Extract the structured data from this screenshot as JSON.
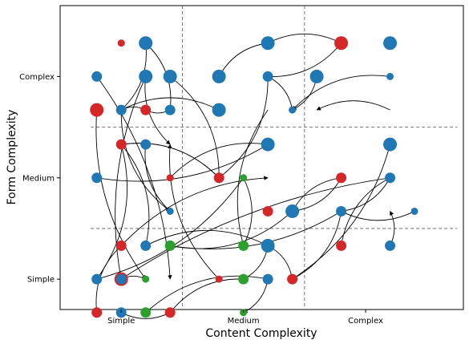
{
  "chart_data": {
    "type": "scatter",
    "title": "",
    "xlabel": "Content Complexity",
    "ylabel": "Form Complexity",
    "xlim": [
      0.5,
      3.8
    ],
    "ylim": [
      0.7,
      3.7
    ],
    "x_ticks": [
      1,
      2,
      3
    ],
    "x_tick_labels": [
      "Simple",
      "Medium",
      "Complex"
    ],
    "y_ticks": [
      1,
      2,
      3
    ],
    "y_tick_labels": [
      "Simple",
      "Medium",
      "Complex"
    ],
    "dividers": {
      "x": [
        1.5,
        2.5
      ],
      "y": [
        1.5,
        2.5
      ]
    },
    "colors": {
      "blue": "#1f77b4",
      "red": "#d62728",
      "green": "#2ca02c"
    },
    "points": [
      {
        "x": 0.8,
        "y": 2.67,
        "color": "red",
        "size": "large"
      },
      {
        "x": 1.0,
        "y": 3.33,
        "color": "red",
        "size": "small"
      },
      {
        "x": 1.2,
        "y": 3.33,
        "color": "blue",
        "size": "large"
      },
      {
        "x": 0.8,
        "y": 3.0,
        "color": "blue",
        "size": "medium"
      },
      {
        "x": 1.2,
        "y": 3.0,
        "color": "blue",
        "size": "large"
      },
      {
        "x": 1.4,
        "y": 3.0,
        "color": "blue",
        "size": "large"
      },
      {
        "x": 1.0,
        "y": 2.67,
        "color": "blue",
        "size": "medium"
      },
      {
        "x": 1.2,
        "y": 2.67,
        "color": "red",
        "size": "medium"
      },
      {
        "x": 1.4,
        "y": 2.67,
        "color": "blue",
        "size": "medium"
      },
      {
        "x": 1.0,
        "y": 2.33,
        "color": "red",
        "size": "medium"
      },
      {
        "x": 1.2,
        "y": 2.33,
        "color": "blue",
        "size": "medium"
      },
      {
        "x": 0.8,
        "y": 2.0,
        "color": "blue",
        "size": "medium"
      },
      {
        "x": 1.4,
        "y": 2.0,
        "color": "red",
        "size": "small"
      },
      {
        "x": 1.4,
        "y": 1.67,
        "color": "blue",
        "size": "small"
      },
      {
        "x": 1.0,
        "y": 1.33,
        "color": "red",
        "size": "medium"
      },
      {
        "x": 1.2,
        "y": 1.33,
        "color": "blue",
        "size": "medium"
      },
      {
        "x": 1.4,
        "y": 1.33,
        "color": "green",
        "size": "medium"
      },
      {
        "x": 0.8,
        "y": 1.0,
        "color": "blue",
        "size": "medium"
      },
      {
        "x": 1.0,
        "y": 1.0,
        "color": "red",
        "size": "large"
      },
      {
        "x": 1.0,
        "y": 1.0,
        "color": "blue",
        "size": "medium"
      },
      {
        "x": 1.2,
        "y": 1.0,
        "color": "green",
        "size": "small"
      },
      {
        "x": 0.8,
        "y": 0.67,
        "color": "red",
        "size": "medium"
      },
      {
        "x": 1.0,
        "y": 0.67,
        "color": "blue",
        "size": "medium"
      },
      {
        "x": 1.2,
        "y": 0.67,
        "color": "green",
        "size": "medium"
      },
      {
        "x": 1.4,
        "y": 0.67,
        "color": "red",
        "size": "medium"
      },
      {
        "x": 2.2,
        "y": 3.33,
        "color": "blue",
        "size": "large"
      },
      {
        "x": 1.8,
        "y": 3.0,
        "color": "blue",
        "size": "large"
      },
      {
        "x": 2.2,
        "y": 3.0,
        "color": "blue",
        "size": "medium"
      },
      {
        "x": 1.8,
        "y": 2.67,
        "color": "blue",
        "size": "large"
      },
      {
        "x": 2.2,
        "y": 2.33,
        "color": "blue",
        "size": "large"
      },
      {
        "x": 1.8,
        "y": 2.0,
        "color": "red",
        "size": "medium"
      },
      {
        "x": 2.0,
        "y": 2.0,
        "color": "green",
        "size": "small"
      },
      {
        "x": 2.2,
        "y": 1.67,
        "color": "red",
        "size": "medium"
      },
      {
        "x": 2.4,
        "y": 1.67,
        "color": "blue",
        "size": "large"
      },
      {
        "x": 2.0,
        "y": 1.33,
        "color": "green",
        "size": "medium"
      },
      {
        "x": 2.2,
        "y": 1.33,
        "color": "blue",
        "size": "large"
      },
      {
        "x": 1.8,
        "y": 1.0,
        "color": "red",
        "size": "small"
      },
      {
        "x": 2.0,
        "y": 1.0,
        "color": "green",
        "size": "medium"
      },
      {
        "x": 2.2,
        "y": 1.0,
        "color": "blue",
        "size": "medium"
      },
      {
        "x": 2.4,
        "y": 1.0,
        "color": "red",
        "size": "medium"
      },
      {
        "x": 2.0,
        "y": 0.67,
        "color": "green",
        "size": "small"
      },
      {
        "x": 2.8,
        "y": 3.33,
        "color": "red",
        "size": "large"
      },
      {
        "x": 3.2,
        "y": 3.33,
        "color": "blue",
        "size": "large"
      },
      {
        "x": 2.6,
        "y": 3.0,
        "color": "blue",
        "size": "large"
      },
      {
        "x": 3.2,
        "y": 3.0,
        "color": "blue",
        "size": "small"
      },
      {
        "x": 2.4,
        "y": 2.67,
        "color": "blue",
        "size": "small"
      },
      {
        "x": 3.2,
        "y": 2.33,
        "color": "blue",
        "size": "large"
      },
      {
        "x": 2.8,
        "y": 2.0,
        "color": "red",
        "size": "medium"
      },
      {
        "x": 3.2,
        "y": 2.0,
        "color": "blue",
        "size": "medium"
      },
      {
        "x": 2.8,
        "y": 1.67,
        "color": "blue",
        "size": "medium"
      },
      {
        "x": 3.4,
        "y": 1.67,
        "color": "blue",
        "size": "small"
      },
      {
        "x": 2.8,
        "y": 1.33,
        "color": "red",
        "size": "medium"
      },
      {
        "x": 3.2,
        "y": 1.33,
        "color": "blue",
        "size": "medium"
      }
    ],
    "links": [
      [
        1.0,
        2.67,
        1.2,
        3.33
      ],
      [
        1.2,
        3.33,
        1.4,
        2.67
      ],
      [
        1.2,
        3.0,
        1.0,
        1.0
      ],
      [
        0.8,
        3.0,
        1.4,
        1.0
      ],
      [
        1.2,
        2.67,
        1.0,
        2.67
      ],
      [
        1.4,
        2.67,
        1.2,
        2.67
      ],
      [
        1.8,
        2.67,
        1.0,
        2.67
      ],
      [
        1.4,
        3.0,
        1.8,
        2.0
      ],
      [
        2.2,
        3.33,
        1.8,
        3.0
      ],
      [
        2.2,
        3.33,
        2.8,
        3.33
      ],
      [
        1.2,
        3.0,
        1.4,
        2.33
      ],
      [
        2.6,
        3.0,
        2.4,
        2.67
      ],
      [
        3.2,
        3.0,
        2.4,
        2.67
      ],
      [
        1.0,
        2.33,
        1.8,
        2.0
      ],
      [
        1.8,
        2.0,
        1.0,
        2.33
      ],
      [
        2.2,
        2.33,
        0.8,
        2.0
      ],
      [
        1.2,
        2.33,
        1.4,
        1.67
      ],
      [
        1.4,
        2.0,
        2.2,
        2.33
      ],
      [
        2.4,
        2.67,
        2.2,
        3.0
      ],
      [
        2.2,
        3.0,
        1.8,
        2.0
      ],
      [
        2.2,
        2.67,
        2.0,
        1.33
      ],
      [
        2.0,
        2.0,
        0.8,
        1.0
      ],
      [
        0.8,
        2.67,
        1.2,
        1.0
      ],
      [
        1.0,
        2.33,
        0.8,
        1.0
      ],
      [
        2.8,
        2.0,
        2.4,
        1.67
      ],
      [
        2.8,
        1.67,
        2.4,
        1.0
      ],
      [
        3.2,
        2.0,
        2.8,
        1.33
      ],
      [
        3.4,
        1.67,
        2.8,
        1.67
      ],
      [
        2.8,
        1.67,
        3.2,
        2.0
      ],
      [
        3.2,
        2.33,
        2.4,
        1.0
      ],
      [
        1.4,
        1.33,
        2.8,
        1.67
      ],
      [
        2.4,
        1.67,
        1.4,
        1.33
      ],
      [
        2.2,
        1.33,
        1.2,
        1.33
      ],
      [
        1.0,
        1.33,
        2.2,
        2.0
      ],
      [
        1.2,
        1.0,
        1.0,
        1.0
      ],
      [
        1.8,
        1.0,
        1.4,
        2.33
      ],
      [
        1.2,
        1.33,
        1.0,
        2.33
      ],
      [
        0.8,
        0.67,
        1.0,
        1.33
      ],
      [
        1.0,
        0.67,
        1.4,
        0.67
      ],
      [
        1.4,
        0.67,
        2.0,
        1.0
      ],
      [
        2.0,
        1.0,
        2.2,
        1.33
      ],
      [
        2.2,
        1.0,
        2.0,
        0.67
      ],
      [
        2.4,
        1.0,
        2.2,
        1.33
      ],
      [
        1.2,
        0.67,
        2.2,
        1.0
      ],
      [
        3.2,
        1.33,
        3.2,
        1.67
      ],
      [
        2.0,
        2.0,
        2.0,
        1.33
      ],
      [
        1.0,
        2.67,
        1.4,
        1.67
      ],
      [
        1.0,
        1.0,
        3.2,
        2.0
      ],
      [
        2.4,
        1.67,
        2.8,
        2.0
      ],
      [
        2.8,
        3.33,
        2.2,
        3.0
      ],
      [
        3.2,
        2.67,
        2.6,
        2.67
      ]
    ]
  }
}
